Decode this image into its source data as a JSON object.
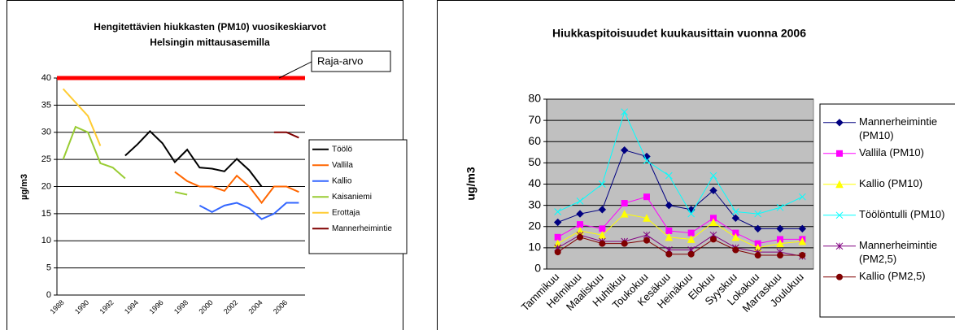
{
  "chart_data": [
    {
      "type": "line",
      "title": [
        "Hengitettävien hiukkasten (PM10) vuosikeskiarvot",
        "Helsingin mittausasemilla"
      ],
      "y_label": "µg/m3",
      "categories": [
        "1988",
        null,
        "1990",
        null,
        "1992",
        null,
        "1994",
        null,
        "1996",
        null,
        "1998",
        null,
        "2000",
        null,
        "2002",
        null,
        "2004",
        null,
        "2006",
        null
      ],
      "ylim": [
        0,
        40
      ],
      "yticks": [
        0,
        5,
        10,
        15,
        20,
        25,
        30,
        35,
        40
      ],
      "grid": true,
      "limit": {
        "label": "Raja-arvo",
        "value": 40,
        "color": "#ff0000"
      },
      "series": [
        {
          "name": "Töölö",
          "color": "#000000",
          "values": [
            null,
            null,
            null,
            null,
            null,
            25.7,
            27.8,
            30.2,
            28,
            24.5,
            26.8,
            23.5,
            23.3,
            22.8,
            25.1,
            23,
            20,
            null,
            null,
            null
          ]
        },
        {
          "name": "Vallila",
          "color": "#ff6600",
          "values": [
            null,
            null,
            null,
            null,
            null,
            null,
            null,
            null,
            null,
            22.7,
            21,
            20,
            20,
            19.2,
            22,
            20,
            17,
            20,
            20,
            19
          ]
        },
        {
          "name": "Kallio",
          "color": "#3366ff",
          "values": [
            null,
            null,
            null,
            null,
            null,
            null,
            null,
            null,
            null,
            null,
            null,
            16.5,
            15.3,
            16.5,
            17,
            16,
            14,
            15,
            17,
            17
          ]
        },
        {
          "name": "Kaisaniemi",
          "color": "#99cc33",
          "values": [
            25,
            31,
            30,
            24.3,
            23.5,
            21.5,
            null,
            null,
            null,
            19,
            18.5,
            null,
            null,
            null,
            null,
            null,
            null,
            null,
            null,
            null
          ]
        },
        {
          "name": "Erottaja",
          "color": "#ffcc33",
          "values": [
            38,
            35.5,
            33,
            27.5,
            null,
            null,
            null,
            null,
            null,
            null,
            null,
            null,
            null,
            null,
            null,
            null,
            null,
            null,
            null,
            null
          ]
        },
        {
          "name": "Mannerheimintie",
          "color": "#800000",
          "values": [
            null,
            null,
            null,
            null,
            null,
            null,
            null,
            null,
            null,
            null,
            null,
            null,
            null,
            null,
            null,
            null,
            null,
            30,
            30,
            29
          ]
        }
      ]
    },
    {
      "type": "line",
      "title": [
        "Hiukkaspitoisuudet kuukausittain vuonna 2006"
      ],
      "y_label": "ug/m3",
      "categories": [
        "Tammikuu",
        "Helmikuu",
        "Maaliskuu",
        "Huhtikuu",
        "Toukokuu",
        "Kesäkuu",
        "Heinäkuu",
        "Elokuu",
        "Syyskuu",
        "Lokakuu",
        "Marraskuu",
        "Joulukuu"
      ],
      "ylim": [
        0,
        80
      ],
      "yticks": [
        0,
        10,
        20,
        30,
        40,
        50,
        60,
        70,
        80
      ],
      "grid": true,
      "series": [
        {
          "name": "Mannerheimintie (PM10)",
          "color": "#000080",
          "marker": "diamond",
          "values": [
            22,
            26,
            28,
            56,
            53,
            30,
            28,
            37,
            24,
            19,
            19,
            19
          ]
        },
        {
          "name": "Vallila (PM10)",
          "color": "#ff00ff",
          "marker": "square",
          "values": [
            15,
            21,
            19,
            31,
            34,
            18,
            17,
            24,
            17,
            12,
            14,
            14
          ]
        },
        {
          "name": "Kallio (PM10)",
          "color": "#ffff00",
          "marker": "triangle",
          "values": [
            12,
            18,
            16,
            26,
            24,
            15,
            14,
            22,
            15,
            10,
            12,
            13
          ]
        },
        {
          "name": "Töölöntulli (PM10)",
          "color": "#00ffff",
          "marker": "x",
          "values": [
            27,
            32,
            40,
            74,
            51,
            44,
            26,
            44,
            27,
            26,
            29,
            34
          ]
        },
        {
          "name": "Mannerheimintie (PM2,5)",
          "color": "#800080",
          "marker": "star",
          "values": [
            10,
            16,
            13,
            13,
            16,
            9,
            9,
            16,
            10,
            8,
            8,
            6
          ]
        },
        {
          "name": "Kallio (PM2,5)",
          "color": "#800000",
          "marker": "circle",
          "values": [
            8,
            15,
            12,
            12,
            13.5,
            7,
            7,
            14,
            9,
            6.5,
            6.5,
            6.5
          ]
        }
      ]
    }
  ]
}
